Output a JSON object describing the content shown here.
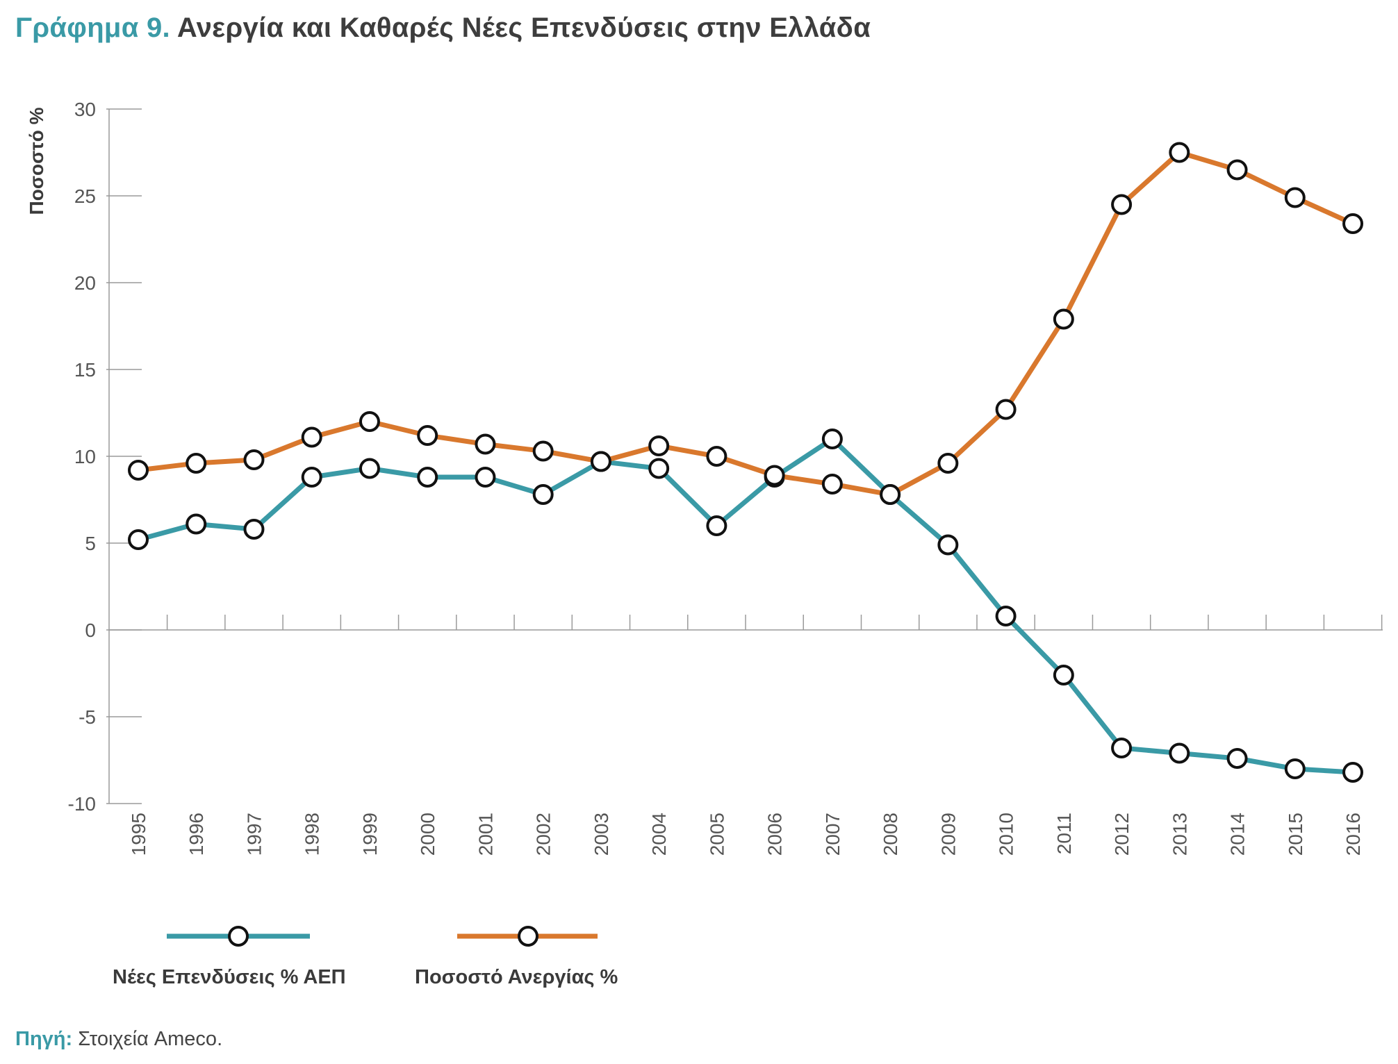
{
  "header": {
    "title_prefix": "Γράφημα 9.",
    "title_main": "Ανεργία και Καθαρές Νέες Επενδύσεις στην Ελλάδα"
  },
  "source": {
    "label": "Πηγή:",
    "text": "Στοιχεία Ameco."
  },
  "chart_data": {
    "type": "line",
    "title": "Ανεργία και Καθαρές Νέες Επενδύσεις στην Ελλάδα",
    "ylabel": "Ποσοστό %",
    "xlabel": "",
    "ylim": [
      -10,
      30
    ],
    "yticks": [
      "30",
      "25",
      "20",
      "15",
      "10",
      "5",
      "0",
      "-5",
      "-10"
    ],
    "ytick_values": [
      30,
      25,
      20,
      15,
      10,
      5,
      0,
      -5,
      -10
    ],
    "categories": [
      "1995",
      "1996",
      "1997",
      "1998",
      "1999",
      "2000",
      "2001",
      "2002",
      "2003",
      "2004",
      "2005",
      "2006",
      "2007",
      "2008",
      "2009",
      "2010",
      "2011",
      "2012",
      "2013",
      "2014",
      "2015",
      "2016"
    ],
    "grid": false,
    "legend_position": "bottom-left",
    "series": [
      {
        "name": "Νέες Επενδύσεις % ΑΕΠ",
        "color": "#3a9aa6",
        "values": [
          5.2,
          6.1,
          5.8,
          8.8,
          9.3,
          8.8,
          8.8,
          7.8,
          9.7,
          9.3,
          6.0,
          8.8,
          11.0,
          7.8,
          4.9,
          0.8,
          -2.6,
          -6.8,
          -7.1,
          -7.4,
          -8.0,
          -8.2
        ]
      },
      {
        "name": "Ποσοστό Ανεργίας %",
        "color": "#d9782d",
        "values": [
          9.2,
          9.6,
          9.8,
          11.1,
          12.0,
          11.2,
          10.7,
          10.3,
          9.7,
          10.6,
          10.0,
          8.9,
          8.4,
          7.8,
          9.6,
          12.7,
          17.9,
          24.5,
          27.5,
          26.5,
          24.9,
          23.4
        ]
      }
    ]
  }
}
